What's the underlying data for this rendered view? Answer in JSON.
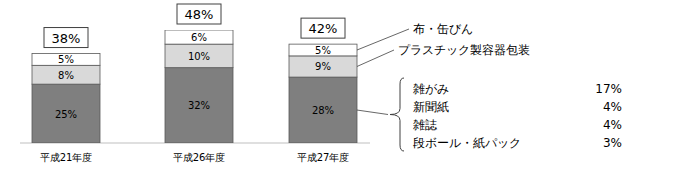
{
  "chart_data": {
    "type": "bar",
    "stacked": true,
    "data_labels": true,
    "tick_labels": false,
    "categories": [
      "平成21年度",
      "平成26年度",
      "平成27年度"
    ],
    "ylim": [
      0,
      48
    ],
    "yticks": [],
    "series": [
      {
        "color": "#7f7f7f",
        "values": [
          25,
          32,
          28
        ],
        "value_labels": [
          "25%",
          "32%",
          "28%"
        ],
        "breakdown": {
          "labels": [
            "雑がみ",
            "新聞紙",
            "雑誌",
            "段ボール・紙パック"
          ],
          "values": [
            17,
            4,
            4,
            3
          ],
          "value_labels": [
            "17%",
            "4%",
            "4%",
            "3%"
          ]
        }
      },
      {
        "name": "プラスチック製容器包装",
        "color": "#d9d9d9",
        "values": [
          8,
          10,
          9
        ],
        "value_labels": [
          "8%",
          "10%",
          "9%"
        ]
      },
      {
        "name": "布・缶びん",
        "color": "#ffffff",
        "values": [
          5,
          6,
          5
        ],
        "value_labels": [
          "5%",
          "6%",
          "5%"
        ]
      }
    ],
    "totals": {
      "values": [
        38,
        48,
        42
      ],
      "value_labels": [
        "38%",
        "48%",
        "42%"
      ]
    }
  }
}
